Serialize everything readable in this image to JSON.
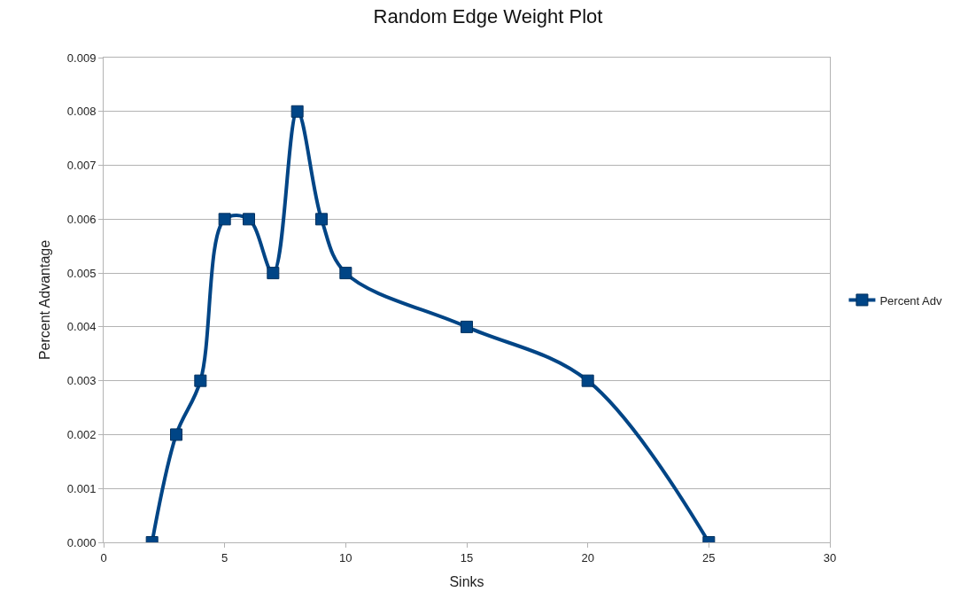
{
  "chart_data": {
    "type": "line",
    "title": "Random Edge Weight Plot",
    "xlabel": "Sinks",
    "ylabel": "Percent Advantage",
    "x": [
      2,
      3,
      4,
      5,
      6,
      7,
      8,
      9,
      10,
      15,
      20,
      25
    ],
    "series": [
      {
        "name": "Percent Adv",
        "color": "#004586",
        "values": [
          0,
          0.002,
          0.003,
          0.006,
          0.006,
          0.005,
          0.008,
          0.006,
          0.005,
          0.004,
          0.003,
          0
        ]
      }
    ],
    "xlim": [
      0,
      30
    ],
    "xticks": [
      0,
      5,
      10,
      15,
      20,
      25,
      30
    ],
    "ylim": [
      0,
      0.009
    ],
    "yticks": [
      {
        "value": 0,
        "label": "0.000"
      },
      {
        "value": 0.001,
        "label": "0.001"
      },
      {
        "value": 0.002,
        "label": "0.002"
      },
      {
        "value": 0.003,
        "label": "0.003"
      },
      {
        "value": 0.004,
        "label": "0.004"
      },
      {
        "value": 0.005,
        "label": "0.005"
      },
      {
        "value": 0.006,
        "label": "0.006"
      },
      {
        "value": 0.007,
        "label": "0.007"
      },
      {
        "value": 0.008,
        "label": "0.008"
      },
      {
        "value": 0.009,
        "label": "0.009"
      }
    ],
    "grid": "y",
    "legend": "right",
    "marker": "square",
    "line_style": "solid"
  }
}
